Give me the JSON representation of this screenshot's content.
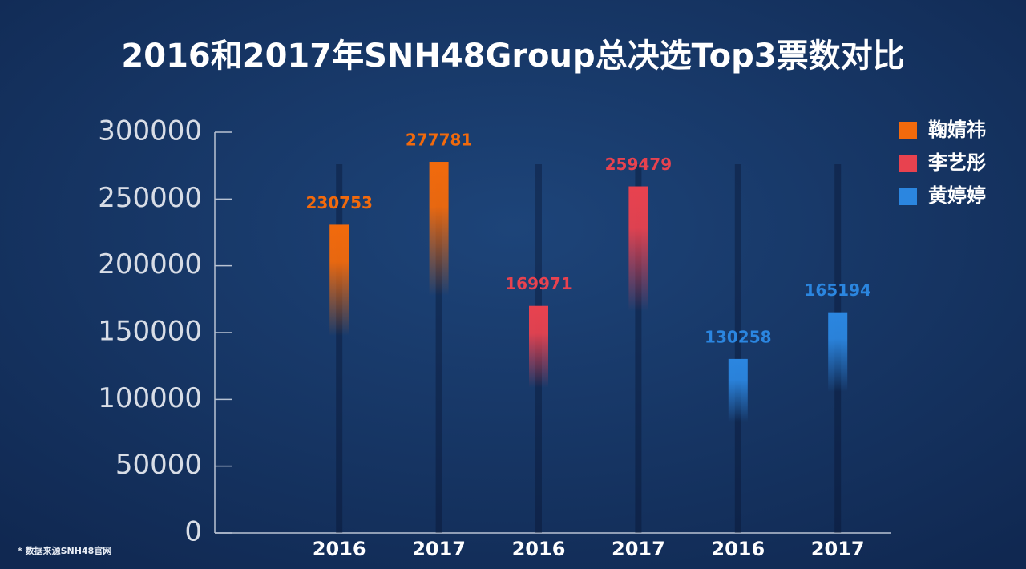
{
  "chart_data": {
    "type": "bar",
    "title": "2016和2017年SNH48Group总决选Top3票数对比",
    "categories": [
      "2016",
      "2017",
      "2016",
      "2017",
      "2016",
      "2017"
    ],
    "series": [
      {
        "name": "鞠婧祎",
        "color": "#f26a0c",
        "values": [
          230753,
          277781,
          null,
          null,
          null,
          null
        ]
      },
      {
        "name": "李艺彤",
        "color": "#e8424f",
        "values": [
          null,
          null,
          169971,
          259479,
          null,
          null
        ]
      },
      {
        "name": "黄婷婷",
        "color": "#2b86e0",
        "values": [
          null,
          null,
          null,
          null,
          130258,
          165194
        ]
      }
    ],
    "ylim": [
      0,
      300000
    ],
    "yticks": [
      0,
      50000,
      100000,
      150000,
      200000,
      250000,
      300000
    ],
    "legend": "top-right",
    "source": "* 数据来源SNH48官网"
  }
}
